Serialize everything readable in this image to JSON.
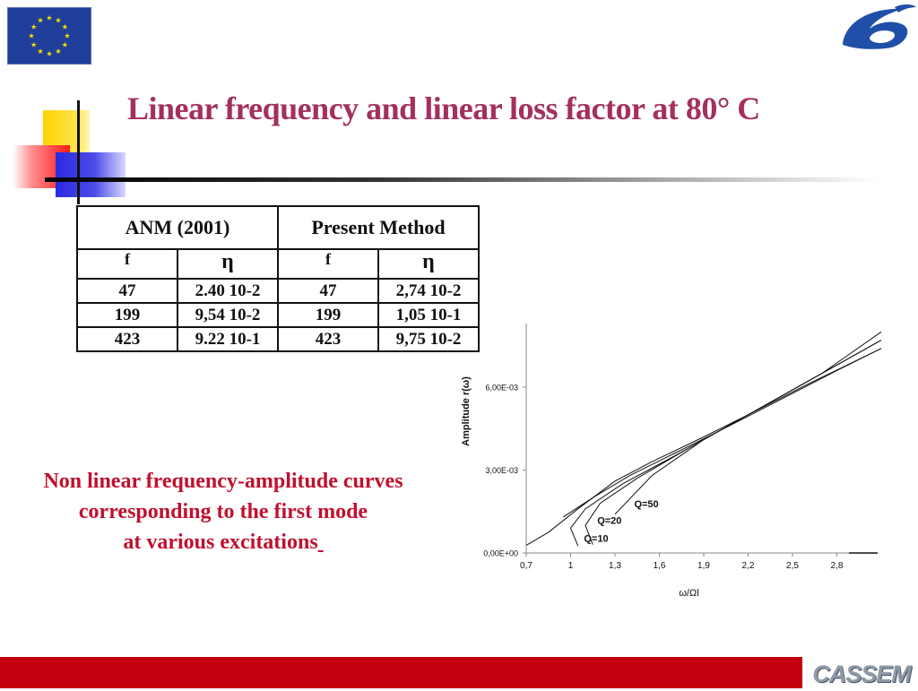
{
  "title": "Linear frequency and linear loss factor at  80° C",
  "table": {
    "group_headers": [
      "ANM (2001)",
      "Present Method"
    ],
    "sub_headers": [
      "f",
      "η",
      "f",
      "η"
    ],
    "rows": [
      [
        "47",
        "2.40 10-2",
        "47",
        "2,74 10-2"
      ],
      [
        "199",
        "9,54 10-2",
        "199",
        "1,05 10-1"
      ],
      [
        "423",
        "9.22 10-1",
        "423",
        "9,75 10-2"
      ]
    ]
  },
  "caption": {
    "line1": "Non linear frequency-amplitude curves",
    "line2": "corresponding to the first mode",
    "line3": "at various excitations"
  },
  "footer": {
    "logo_text": "CASSEM"
  },
  "colors": {
    "title": "#a3305f",
    "caption": "#c0102e",
    "footer_bar": "#c40010",
    "eu_blue": "#1f3f9a",
    "eu_star": "#ffdd00",
    "fp6_blue": "#1f4fa8"
  },
  "icons": {
    "eu_flag": "eu-flag-logo",
    "fp6": "fp6-logo"
  },
  "chart_data": {
    "type": "line",
    "xlabel": "ω/Ωl",
    "ylabel": "Amplitude r(ω)",
    "x_ticks": [
      "0,7",
      "1",
      "1,3",
      "1,6",
      "1,9",
      "2,2",
      "2,5",
      "2,8"
    ],
    "y_ticks": [
      "0,00E+00",
      "3,00E-03",
      "6,00E-03"
    ],
    "xlim": [
      0.7,
      3.1
    ],
    "ylim": [
      0,
      0.0083
    ],
    "annotations": [
      "Q=50",
      "Q=20",
      "Q=10"
    ],
    "series": [
      {
        "points": [
          [
            0.7,
            0.00028
          ],
          [
            0.85,
            0.00075
          ],
          [
            1.05,
            0.0016
          ],
          [
            1.3,
            0.0026
          ],
          [
            1.55,
            0.0033
          ],
          [
            1.9,
            0.0042
          ],
          [
            2.2,
            0.005
          ],
          [
            2.6,
            0.0061
          ],
          [
            3.1,
            0.0074
          ]
        ]
      },
      {
        "points": [
          [
            0.95,
            0.0013
          ],
          [
            1.15,
            0.002
          ],
          [
            1.4,
            0.0028
          ],
          [
            1.7,
            0.0036
          ],
          [
            2.0,
            0.0044
          ],
          [
            2.4,
            0.0055
          ],
          [
            2.8,
            0.0066
          ],
          [
            3.1,
            0.0074
          ]
        ]
      },
      {
        "points": [
          [
            1.05,
            0.00025
          ],
          [
            1.0,
            0.0009
          ],
          [
            1.1,
            0.0016
          ],
          [
            1.35,
            0.0025
          ],
          [
            1.7,
            0.0035
          ],
          [
            2.1,
            0.0047
          ],
          [
            2.6,
            0.0062
          ],
          [
            3.1,
            0.0077
          ]
        ]
      },
      {
        "points": [
          [
            1.15,
            0.0003
          ],
          [
            1.1,
            0.001
          ],
          [
            1.2,
            0.0018
          ],
          [
            1.45,
            0.0027
          ],
          [
            1.8,
            0.0038
          ],
          [
            2.2,
            0.005
          ],
          [
            2.7,
            0.0065
          ],
          [
            3.1,
            0.008
          ]
        ]
      },
      {
        "points": [
          [
            1.3,
            0.0014
          ],
          [
            1.55,
            0.0028
          ],
          [
            1.9,
            0.0041
          ],
          [
            2.3,
            0.0053
          ],
          [
            2.8,
            0.0068
          ],
          [
            3.1,
            0.0077
          ]
        ]
      }
    ]
  }
}
